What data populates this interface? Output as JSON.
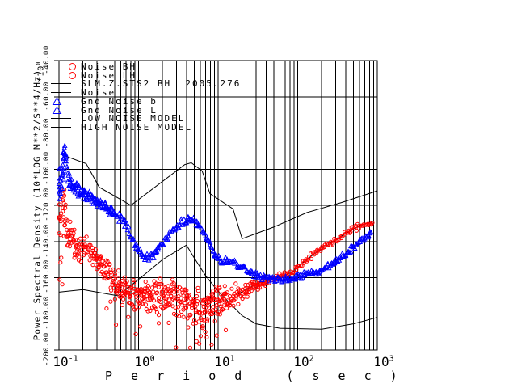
{
  "figure": {
    "xlabel": "P e r i o d   ( s e c )",
    "ylabel": "Power Spectral Density (10*LOG M**2/S**4/Hz)",
    "y_multiplier_base": "*10",
    "y_multiplier_exp": "0",
    "y_ticks": [
      "-40.00",
      "-60.00",
      "-80.00",
      "-100.00",
      "-120.00",
      "-140.00",
      "-160.00",
      "-180.00",
      "-200.00"
    ],
    "x_ticks": [
      {
        "base": "10",
        "exp": "-1"
      },
      {
        "base": "10",
        "exp": "0"
      },
      {
        "base": "10",
        "exp": "1"
      },
      {
        "base": "10",
        "exp": "2"
      },
      {
        "base": "10",
        "exp": "3"
      }
    ]
  },
  "legend": [
    {
      "symbol": "circle",
      "color": "#ff0000",
      "label": "Noise BH"
    },
    {
      "symbol": "circle",
      "color": "#ff0000",
      "label": "Noise LH"
    },
    {
      "symbol": "line",
      "color": "#000000",
      "label": "SLM.Z.STS2 BH  2005.276"
    },
    {
      "symbol": "line",
      "color": "#000000",
      "label": "Noise"
    },
    {
      "symbol": "triangle",
      "color": "#0000ff",
      "label": "Gnd Noise b"
    },
    {
      "symbol": "triangle",
      "color": "#0000ff",
      "label": "Gnd Noise L"
    },
    {
      "symbol": "line",
      "color": "#000000",
      "label": "LOW NOISE MODEL"
    },
    {
      "symbol": "line",
      "color": "#000000",
      "label": "HIGH NOISE MODEL"
    }
  ],
  "colors": {
    "red": "#ff0000",
    "blue": "#0000ff",
    "black": "#000000",
    "background": "#ffffff"
  },
  "chart_data": {
    "type": "scatter",
    "title": "",
    "xlabel": "Period (sec)",
    "ylabel": "Power Spectral Density (10*LOG M**2/S**4/Hz)",
    "x_scale": "log",
    "xlim": [
      0.1,
      1000
    ],
    "ylim": [
      -200,
      -40
    ],
    "y_tick_step": 20,
    "grid": true,
    "legend_position": "top-left",
    "series": [
      {
        "name": "HIGH NOISE MODEL",
        "type": "line",
        "color": "#000000",
        "points": [
          [
            0.1,
            -91.5
          ],
          [
            0.22,
            -97
          ],
          [
            0.32,
            -110
          ],
          [
            0.8,
            -120
          ],
          [
            3.8,
            -97.5
          ],
          [
            4.6,
            -96.5
          ],
          [
            6.3,
            -101
          ],
          [
            7.9,
            -113.5
          ],
          [
            15.4,
            -122
          ],
          [
            20,
            -138.5
          ],
          [
            50,
            -132
          ],
          [
            131,
            -124
          ],
          [
            354,
            -118.5
          ],
          [
            1000,
            -112
          ]
        ]
      },
      {
        "name": "LOW NOISE MODEL",
        "type": "line",
        "color": "#000000",
        "points": [
          [
            0.1,
            -168
          ],
          [
            0.2,
            -166.6
          ],
          [
            0.55,
            -170
          ],
          [
            1.0,
            -161
          ],
          [
            2.0,
            -150
          ],
          [
            4.0,
            -142
          ],
          [
            5.0,
            -149
          ],
          [
            7.0,
            -159
          ],
          [
            10,
            -167.5
          ],
          [
            20,
            -181
          ],
          [
            30,
            -185.5
          ],
          [
            60,
            -188
          ],
          [
            200,
            -188.5
          ],
          [
            500,
            -185.5
          ],
          [
            1000,
            -182
          ]
        ]
      },
      {
        "name": "SLM.Z.STS2 BH 2005.276",
        "type": "line",
        "color": "#000000",
        "points": [
          [
            18,
            -169
          ],
          [
            26,
            -165
          ],
          [
            33,
            -163
          ],
          [
            42,
            -161.5
          ],
          [
            55,
            -160
          ],
          [
            70,
            -158.5
          ],
          [
            90,
            -156.5
          ],
          [
            120,
            -151
          ],
          [
            160,
            -147
          ],
          [
            210,
            -143.5
          ],
          [
            280,
            -140
          ],
          [
            370,
            -136.5
          ],
          [
            480,
            -133.5
          ],
          [
            620,
            -131
          ],
          [
            800,
            -129.5
          ],
          [
            880,
            -129
          ]
        ]
      },
      {
        "name": "Noise BH",
        "type": "scatter",
        "marker": "circle",
        "color": "#ff0000",
        "center": [
          [
            0.1,
            -128,
            25
          ],
          [
            0.11,
            -124,
            20
          ],
          [
            0.12,
            -128,
            16
          ],
          [
            0.135,
            -135,
            12
          ],
          [
            0.155,
            -141,
            9
          ],
          [
            0.18,
            -144,
            8
          ],
          [
            0.22,
            -145,
            8
          ],
          [
            0.27,
            -147,
            8
          ],
          [
            0.33,
            -152,
            9
          ],
          [
            0.4,
            -158,
            10
          ],
          [
            0.5,
            -163,
            10
          ],
          [
            0.65,
            -167,
            10
          ],
          [
            0.8,
            -169,
            10
          ],
          [
            1.0,
            -170,
            11
          ],
          [
            1.3,
            -171,
            11
          ],
          [
            1.7,
            -171,
            11
          ],
          [
            2.2,
            -170,
            11
          ],
          [
            3.0,
            -171,
            11
          ],
          [
            4.0,
            -173,
            12
          ],
          [
            5.0,
            -175,
            13
          ],
          [
            6.5,
            -178,
            13
          ],
          [
            8.0,
            -175,
            12
          ],
          [
            10,
            -173,
            10
          ],
          [
            13,
            -171,
            8
          ],
          [
            16,
            -170,
            7
          ],
          [
            20,
            -168,
            6
          ],
          [
            26,
            -165,
            5
          ],
          [
            33,
            -163,
            4
          ],
          [
            42,
            -161.5,
            3
          ],
          [
            55,
            -160,
            2.5
          ],
          [
            70,
            -158.5,
            2
          ],
          [
            90,
            -156.5,
            2
          ],
          [
            120,
            -151,
            2
          ],
          [
            160,
            -147,
            2
          ],
          [
            210,
            -143.5,
            2
          ],
          [
            280,
            -140,
            2
          ],
          [
            370,
            -136.5,
            2
          ],
          [
            480,
            -133.5,
            2
          ],
          [
            620,
            -131,
            2
          ],
          [
            800,
            -129.5,
            2
          ],
          [
            900,
            -129,
            2
          ]
        ],
        "outliers": [
          [
            5.8,
            -196.5
          ],
          [
            8.3,
            -197
          ],
          [
            7.2,
            -193
          ],
          [
            4.2,
            -187.5
          ],
          [
            6.9,
            -190
          ],
          [
            9.6,
            -192
          ],
          [
            12.5,
            -189
          ],
          [
            0.52,
            -186
          ],
          [
            1.05,
            -187
          ],
          [
            2.4,
            -185
          ]
        ]
      },
      {
        "name": "Gnd Noise",
        "type": "scatter",
        "marker": "triangle",
        "color": "#0000ff",
        "center": [
          [
            0.1,
            -110,
            12
          ],
          [
            0.104,
            -108,
            14
          ],
          [
            0.109,
            -106,
            13
          ],
          [
            0.115,
            -97,
            10
          ],
          [
            0.118,
            -90,
            5
          ],
          [
            0.122,
            -93,
            6
          ],
          [
            0.13,
            -103,
            6
          ],
          [
            0.14,
            -108,
            5
          ],
          [
            0.16,
            -111,
            4
          ],
          [
            0.19,
            -112.5,
            4
          ],
          [
            0.23,
            -114.5,
            4
          ],
          [
            0.28,
            -117,
            4
          ],
          [
            0.35,
            -120,
            3.5
          ],
          [
            0.45,
            -123.5,
            3.5
          ],
          [
            0.55,
            -126,
            3
          ],
          [
            0.65,
            -129,
            3
          ],
          [
            0.75,
            -134,
            3
          ],
          [
            0.85,
            -140,
            3
          ],
          [
            1.0,
            -145.5,
            3
          ],
          [
            1.15,
            -148.5,
            2.5
          ],
          [
            1.3,
            -149.5,
            2.5
          ],
          [
            1.5,
            -147.5,
            2.5
          ],
          [
            1.8,
            -143.5,
            2.5
          ],
          [
            2.2,
            -139,
            2.5
          ],
          [
            2.7,
            -134.5,
            2.5
          ],
          [
            3.2,
            -131,
            2.5
          ],
          [
            3.8,
            -128.5,
            2.5
          ],
          [
            4.3,
            -127.5,
            2.5
          ],
          [
            5.0,
            -129,
            2.5
          ],
          [
            6.0,
            -132.5,
            2.5
          ],
          [
            7.0,
            -137,
            2.5
          ],
          [
            8.0,
            -142,
            2.5
          ],
          [
            9.0,
            -146.5,
            2.5
          ],
          [
            10,
            -149.5,
            2.5
          ],
          [
            11,
            -152,
            2
          ],
          [
            12.5,
            -150.5,
            2
          ],
          [
            14,
            -152.5,
            2
          ],
          [
            15.5,
            -150.5,
            2
          ],
          [
            18,
            -154,
            2
          ],
          [
            21,
            -154.5,
            2
          ],
          [
            25,
            -157,
            2
          ],
          [
            30,
            -158.5,
            2
          ],
          [
            38,
            -160,
            2
          ],
          [
            50,
            -160.5,
            2
          ],
          [
            65,
            -161.5,
            2
          ],
          [
            80,
            -160.5,
            2
          ],
          [
            100,
            -159.5,
            2
          ],
          [
            130,
            -158,
            2
          ],
          [
            170,
            -157.5,
            2
          ],
          [
            220,
            -155,
            2
          ],
          [
            280,
            -152,
            2
          ],
          [
            360,
            -148.5,
            2
          ],
          [
            450,
            -145.5,
            2
          ],
          [
            560,
            -141.5,
            2
          ],
          [
            700,
            -138,
            2
          ],
          [
            780,
            -136,
            2
          ],
          [
            860,
            -134,
            2
          ]
        ],
        "outliers": []
      }
    ]
  }
}
